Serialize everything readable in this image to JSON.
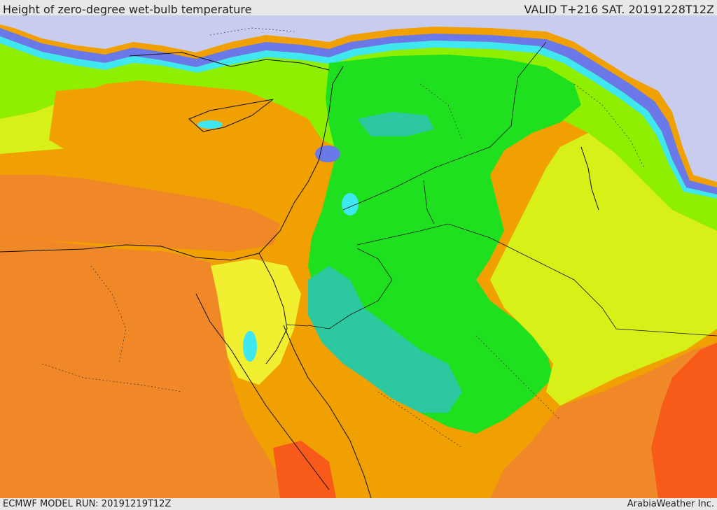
{
  "header": {
    "title": "Height of zero-degree wet-bulb temperature",
    "valid_time": "VALID T+216 SAT. 20191228T12Z"
  },
  "footer": {
    "model_run": "ECMWF MODEL RUN: 20191219T12Z",
    "credit": "ArabiaWeather Inc."
  },
  "map": {
    "region": "Middle East",
    "palette": {
      "very_low": "#c8cdf0",
      "low": "#6a78e8",
      "cyan": "#3fe8f0",
      "teal": "#2cc9a0",
      "green": "#1fe01f",
      "light_green": "#8ef000",
      "yellow_green": "#d6f018",
      "yellow": "#f0f030",
      "orange": "#f0a000",
      "dark_orange": "#f08828",
      "red_orange": "#f85a1a"
    }
  }
}
